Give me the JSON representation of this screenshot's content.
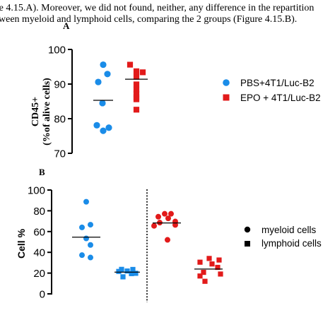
{
  "header": {
    "line1": "re 4.15.A). Moreover, we did not found, neither, any difference in the repartition",
    "line2": "ween myeloid and lymphoid cells, comparing the 2 groups (Figure 4.15.B)."
  },
  "colors": {
    "blue": "#1a8ce8",
    "red": "#e21a1a",
    "axis": "#000000"
  },
  "chart_data": [
    {
      "panel": "A",
      "type": "scatter",
      "ylabel": "CD45+ (%of alive cells)",
      "ylabel_lines": [
        "CD45+",
        "(%of alive cells)"
      ],
      "ylim": [
        70,
        100
      ],
      "yticks": [
        70,
        80,
        90,
        100
      ],
      "legend_position": "right",
      "series": [
        {
          "name": "PBS+4T1/Luc-B2",
          "marker": "circle",
          "color": "#1a8ce8",
          "values": [
            95.6,
            92.9,
            90.6,
            84.5,
            78.1,
            77.4,
            76.5
          ],
          "mean": 85.3
        },
        {
          "name": "EPO + 4T1/Luc-B2",
          "marker": "square",
          "color": "#e21a1a",
          "values": [
            95.6,
            93.7,
            93.4,
            92.1,
            89.9,
            88.4,
            87.2,
            86.2,
            85.6,
            82.6
          ],
          "mean": 91.4
        }
      ]
    },
    {
      "panel": "B",
      "type": "scatter",
      "ylabel": "Cell %",
      "ylim": [
        0,
        100
      ],
      "yticks": [
        0,
        20,
        40,
        60,
        80,
        100
      ],
      "legend_position": "right",
      "legend": [
        {
          "name": "myeloid cells",
          "marker": "circle"
        },
        {
          "name": "lymphoid cells",
          "marker": "square"
        }
      ],
      "groups": [
        {
          "group": "PBS+4T1/Luc-B2",
          "cell_type": "myeloid cells",
          "marker": "circle",
          "color": "#1a8ce8",
          "values": [
            88.7,
            66.6,
            64.0,
            53.4,
            47.1,
            37.3,
            35.0
          ],
          "mean": 54.6
        },
        {
          "group": "PBS+4T1/Luc-B2",
          "cell_type": "lymphoid cells",
          "marker": "square",
          "color": "#1a8ce8",
          "values": [
            23.6,
            23.5,
            22.0,
            21.6,
            19.8,
            19.5,
            16.4
          ],
          "mean": 20.9
        },
        {
          "group": "EPO + 4T1/Luc-B2",
          "cell_type": "myeloid cells",
          "marker": "circle",
          "color": "#e21a1a",
          "values": [
            77.1,
            77.1,
            74.3,
            72.7,
            69.7,
            68.6,
            66.4,
            65.5,
            52.0
          ],
          "mean": 68.3
        },
        {
          "group": "EPO + 4T1/Luc-B2",
          "cell_type": "lymphoid cells",
          "marker": "square",
          "color": "#e21a1a",
          "values": [
            34.1,
            32.6,
            30.5,
            28.8,
            25.5,
            20.7,
            19.1,
            17.2,
            12.1
          ],
          "mean": 23.9
        }
      ]
    }
  ]
}
